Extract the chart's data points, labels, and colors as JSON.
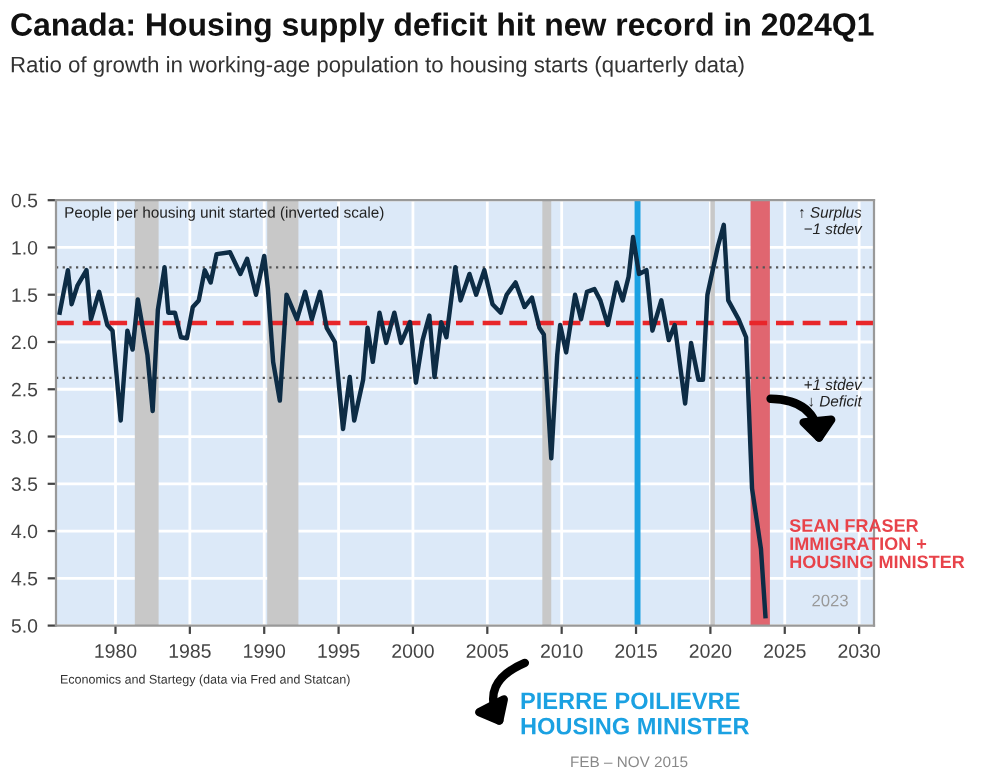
{
  "chart_data": {
    "type": "line",
    "title": "Canada: Housing supply deficit hit new record in 2024Q1",
    "subtitle": "Ratio of growth in working-age population to housing starts (quarterly data)",
    "x": [
      1976.25,
      1976.8,
      1977.05,
      1977.45,
      1978.05,
      1978.35,
      1978.9,
      1979.45,
      1979.8,
      1980.35,
      1980.8,
      1981.15,
      1981.5,
      1981.8,
      1982.15,
      1982.5,
      1982.85,
      1983.3,
      1983.55,
      1984.0,
      1984.4,
      1984.8,
      1985.2,
      1985.6,
      1986.0,
      1986.4,
      1986.8,
      1987.7,
      1988.4,
      1988.85,
      1989.45,
      1990.0,
      1990.25,
      1990.6,
      1991.05,
      1991.5,
      1992.2,
      1992.75,
      1993.2,
      1993.75,
      1994.2,
      1994.75,
      1995.3,
      1995.75,
      1996.05,
      1996.65,
      1996.95,
      1997.3,
      1997.75,
      1998.2,
      1998.75,
      1999.2,
      1999.8,
      2000.2,
      2000.65,
      2001.1,
      2001.45,
      2001.9,
      2002.25,
      2002.85,
      2003.2,
      2003.8,
      2004.25,
      2004.8,
      2005.35,
      2005.9,
      2006.3,
      2006.9,
      2007.5,
      2008.0,
      2008.5,
      2008.8,
      2009.3,
      2009.7,
      2009.9,
      2010.3,
      2010.9,
      2011.3,
      2011.7,
      2012.2,
      2012.6,
      2013.1,
      2013.7,
      2014.1,
      2014.5,
      2014.8,
      2015.2,
      2015.7,
      2016.1,
      2016.7,
      2017.2,
      2017.6,
      2018.3,
      2018.7,
      2019.2,
      2019.5,
      2019.8,
      2020.5,
      2020.9,
      2021.2,
      2021.9,
      2022.4,
      2022.8,
      2023.1,
      2023.4,
      2023.7
    ],
    "series": [
      {
        "color": "#0d2c45",
        "values": [
          1.69,
          1.24,
          1.6,
          1.4,
          1.24,
          1.76,
          1.47,
          1.82,
          1.88,
          2.83,
          1.88,
          2.08,
          1.55,
          1.82,
          2.14,
          2.73,
          1.66,
          1.21,
          1.69,
          1.69,
          1.95,
          1.96,
          1.63,
          1.56,
          1.24,
          1.37,
          1.07,
          1.05,
          1.28,
          1.12,
          1.5,
          1.09,
          1.44,
          2.21,
          2.62,
          1.5,
          1.76,
          1.47,
          1.76,
          1.47,
          1.85,
          2.0,
          2.92,
          2.37,
          2.83,
          2.4,
          1.85,
          2.21,
          1.69,
          2.01,
          1.69,
          2.01,
          1.79,
          2.43,
          1.98,
          1.72,
          2.37,
          1.79,
          1.95,
          1.21,
          1.56,
          1.28,
          1.5,
          1.24,
          1.6,
          1.69,
          1.5,
          1.37,
          1.63,
          1.53,
          1.85,
          1.92,
          3.23,
          2.14,
          1.82,
          2.11,
          1.5,
          1.76,
          1.47,
          1.44,
          1.56,
          1.82,
          1.37,
          1.56,
          1.31,
          0.89,
          1.28,
          1.24,
          1.88,
          1.56,
          1.98,
          1.82,
          2.65,
          2.01,
          2.4,
          2.4,
          1.5,
          0.99,
          0.76,
          1.56,
          1.76,
          1.95,
          3.55,
          3.87,
          4.19,
          4.9
        ]
      }
    ],
    "xlim": [
      1976,
      2031
    ],
    "ylim": [
      5.0,
      0.5
    ],
    "xticks": [
      1980,
      1985,
      1990,
      1995,
      2000,
      2005,
      2010,
      2015,
      2020,
      2025,
      2030
    ],
    "yticks": [
      0.5,
      {
        "value": 1,
        "label": "1.0"
      },
      1.5,
      {
        "value": 2,
        "label": "2.0"
      },
      2.5,
      {
        "value": 3,
        "label": "3.0"
      },
      3.5,
      {
        "value": 4,
        "label": "4.0"
      },
      4.5,
      {
        "value": 5,
        "label": "5.0"
      }
    ],
    "grid": true,
    "marker": "none",
    "line_style": "solid",
    "ref_lines": [
      {
        "axis": "y",
        "value": 1.8,
        "color": "#e8262a",
        "line_style": "dashed"
      },
      {
        "axis": "y",
        "value": 1.21,
        "color": "#555555",
        "line_style": "dotted"
      },
      {
        "axis": "y",
        "value": 2.38,
        "color": "#555555",
        "line_style": "dotted"
      }
    ],
    "bands": [
      {
        "axis": "x",
        "from": 1981.3,
        "to": 1982.9,
        "color": "#c8c8c8"
      },
      {
        "axis": "x",
        "from": 1990.2,
        "to": 1992.3,
        "color": "#c8c8c8"
      },
      {
        "axis": "x",
        "from": 2008.7,
        "to": 2009.3,
        "color": "#c8c8c8"
      },
      {
        "axis": "x",
        "from": 2020.0,
        "to": 2020.3,
        "color": "#c8c8c8"
      },
      {
        "axis": "x",
        "from": 2014.9,
        "to": 2015.3,
        "color": "#1ba1e2"
      },
      {
        "axis": "x",
        "from": 2022.7,
        "to": 2024.0,
        "color": "#e06670"
      }
    ],
    "annotations": [
      "People per housing unit started (inverted scale)",
      "↑ Surplus\n−1 stdev",
      "+1 stdev\n↓ Deficit",
      "SEAN FRASER\nIMMIGRATION +\nHOUSING MINISTER",
      "2023",
      "PIERRE POILIEVRE\nHOUSING MINISTER",
      "FEB – NOV 2015",
      "Economics and Startegy (data via Fred and Statcan)"
    ]
  }
}
